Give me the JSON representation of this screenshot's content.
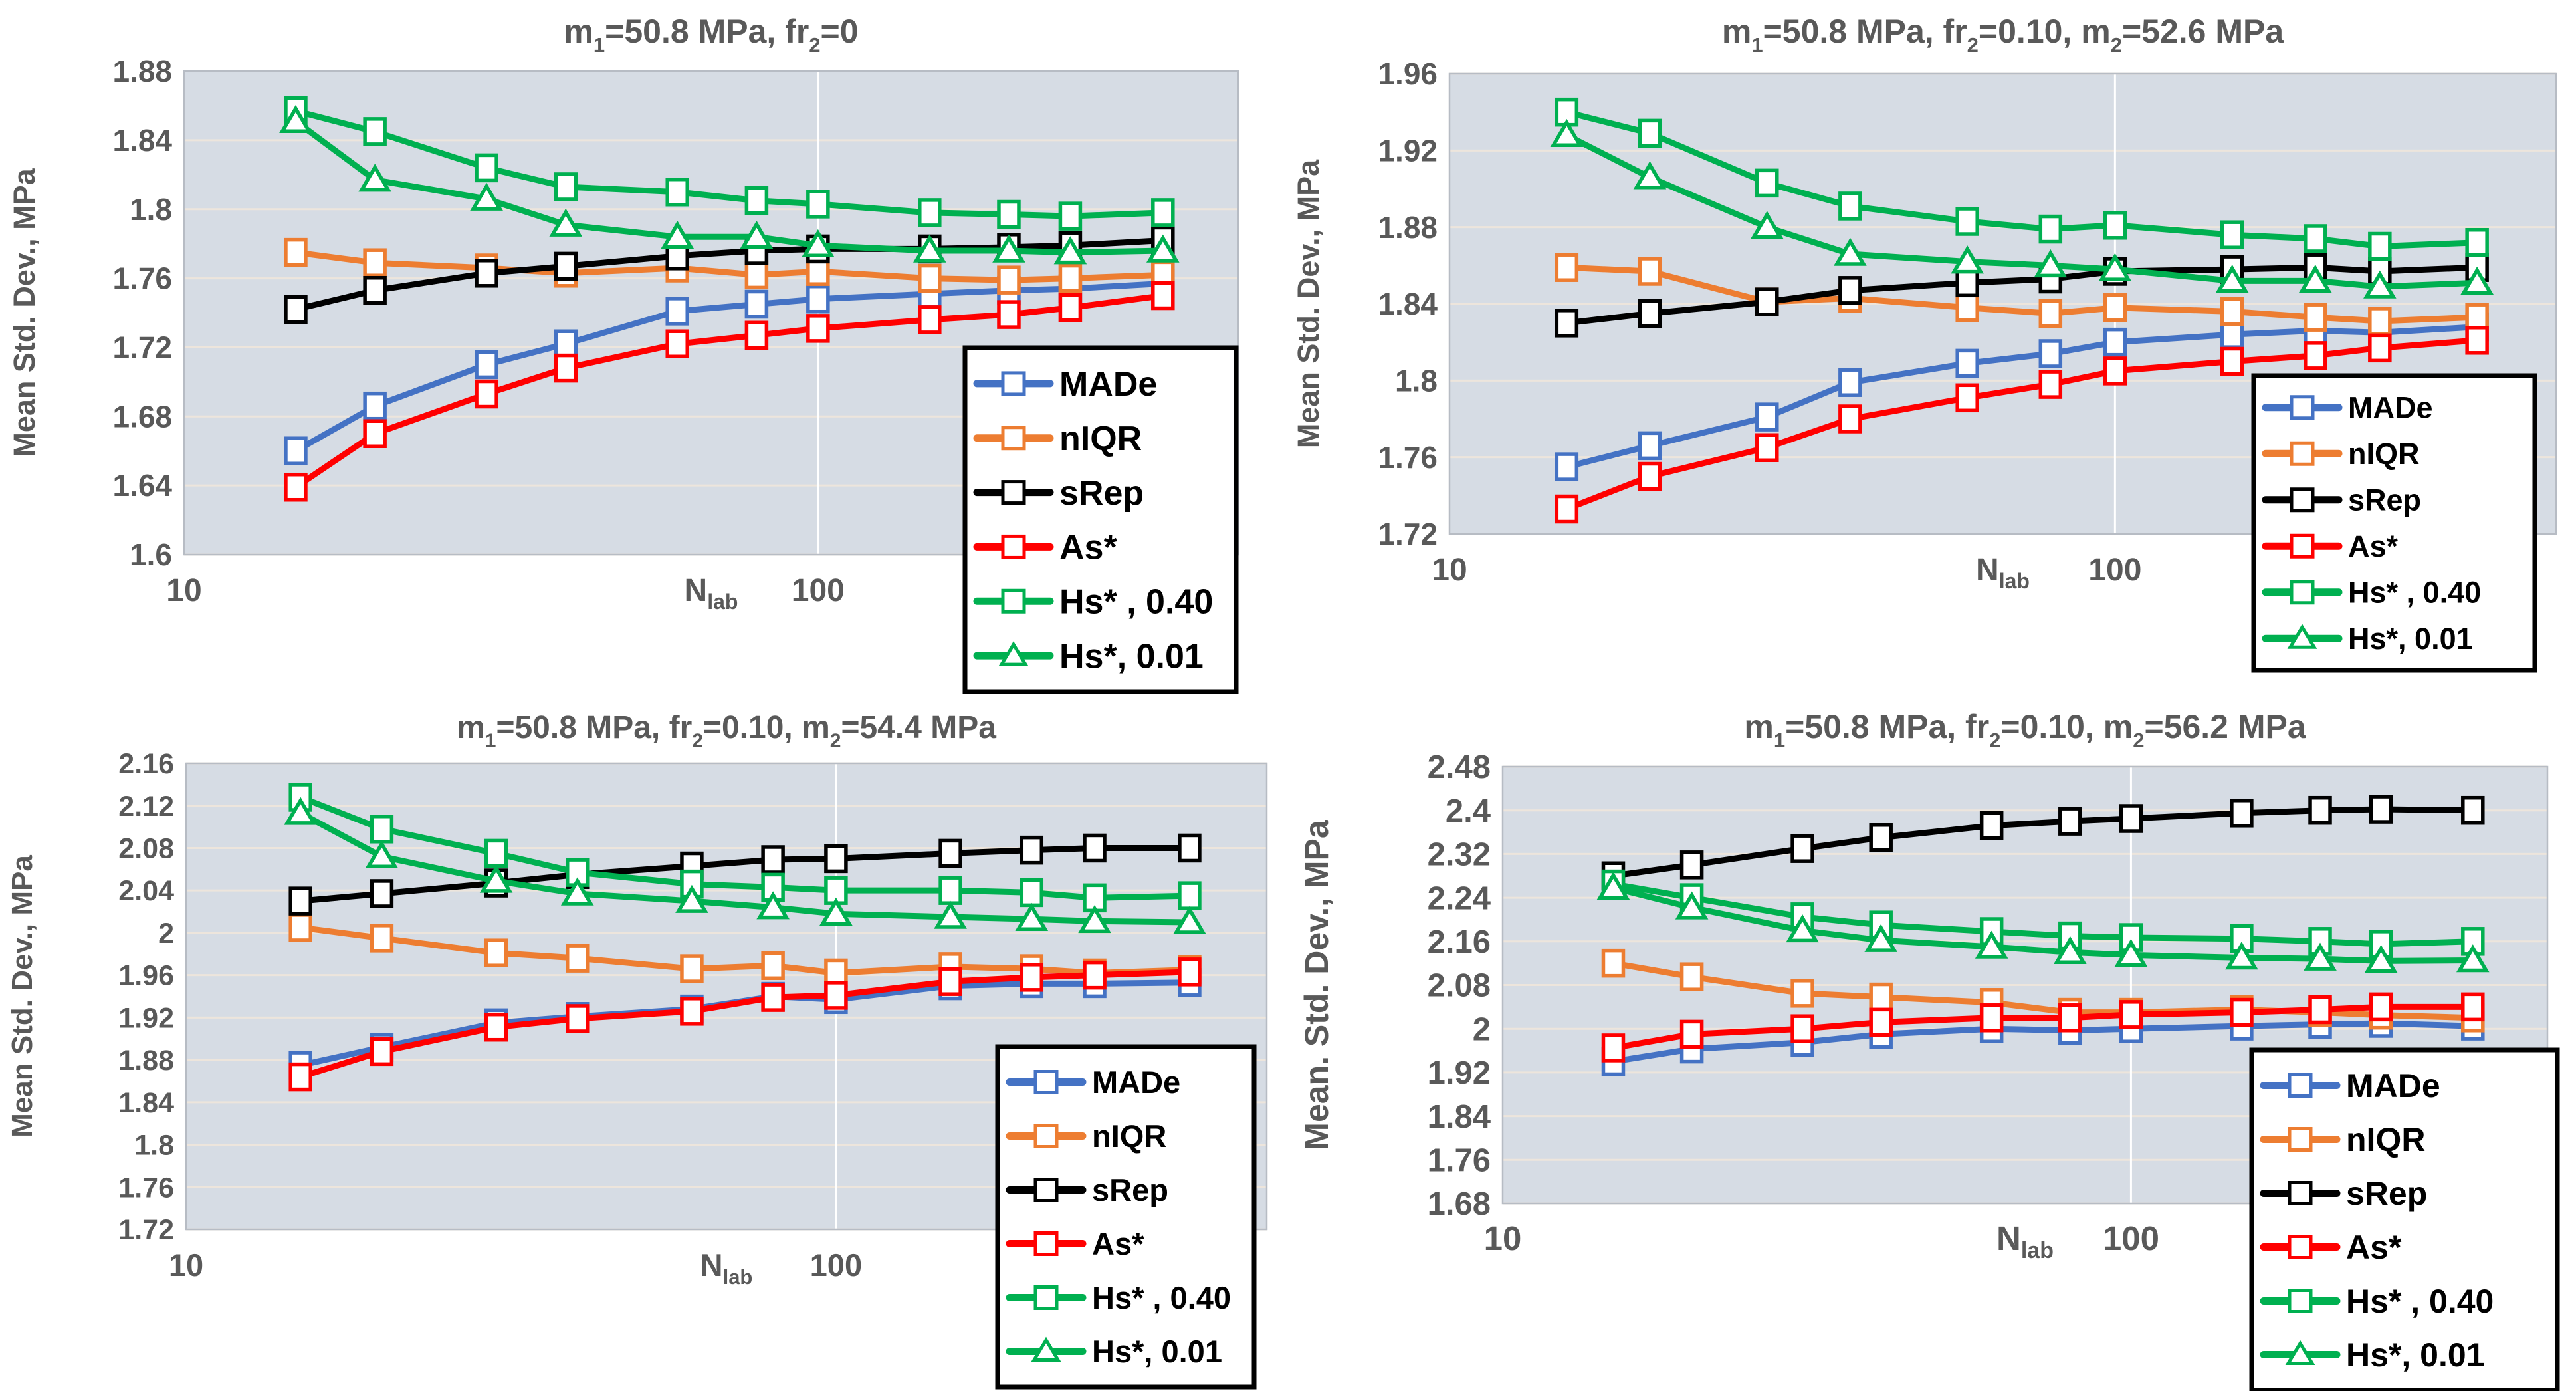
{
  "page": {
    "background": "#FFFFFF"
  },
  "colors": {
    "MADe": "#4472C4",
    "nIQR": "#ED7D31",
    "sRep": "#000000",
    "As": "#FF0000",
    "Hs": "#00B050",
    "axis_text": "#595959",
    "plot_bg": "#D6DCE4",
    "gridline": "#EDE5DC",
    "decade_gridline": "#FFFFFF",
    "plot_border": "#B7BCC4",
    "legend_border": "#000000",
    "legend_bg": "#FFFFFF",
    "legend_text": "#000000"
  },
  "legend": {
    "labels": [
      "MADe",
      "nIQR",
      "sRep",
      "As*",
      "Hs* , 0.40",
      "Hs*, 0.01"
    ]
  },
  "chart_data": [
    {
      "type": "line",
      "title": "m₁=50.8 MPa, fr₂=0",
      "title_segments": [
        {
          "t": "m"
        },
        {
          "t": "1",
          "sub": true
        },
        {
          "t": "=50.8 MPa, fr"
        },
        {
          "t": "2",
          "sub": true
        },
        {
          "t": "=0"
        }
      ],
      "xlabel": {
        "main": "N",
        "sub": "lab"
      },
      "ylabel": "Mean Std. Dev., MPa",
      "x_scale": "log",
      "xlim": [
        10,
        460
      ],
      "x_ticks": [
        {
          "v": 10,
          "label": "10"
        },
        {
          "v": 100,
          "label": "100"
        }
      ],
      "ylim": [
        1.6,
        1.88
      ],
      "y_ticks": [
        {
          "v": 1.6,
          "label": "1.6"
        },
        {
          "v": 1.64,
          "label": "1.64"
        },
        {
          "v": 1.68,
          "label": "1.68"
        },
        {
          "v": 1.72,
          "label": "1.72"
        },
        {
          "v": 1.76,
          "label": "1.76"
        },
        {
          "v": 1.8,
          "label": "1.8"
        },
        {
          "v": 1.84,
          "label": "1.84"
        },
        {
          "v": 1.88,
          "label": "1.88"
        }
      ],
      "x": [
        15,
        20,
        30,
        40,
        60,
        80,
        100,
        150,
        200,
        250,
        350
      ],
      "series": [
        {
          "name": "MADe",
          "color": "MADe",
          "marker": "square",
          "values": [
            1.66,
            1.686,
            1.71,
            1.722,
            1.741,
            1.745,
            1.748,
            1.751,
            1.753,
            1.754,
            1.757
          ]
        },
        {
          "name": "nIQR",
          "color": "nIQR",
          "marker": "square",
          "values": [
            1.775,
            1.769,
            1.766,
            1.763,
            1.766,
            1.762,
            1.764,
            1.76,
            1.759,
            1.76,
            1.762
          ]
        },
        {
          "name": "sRep",
          "color": "sRep",
          "marker": "square",
          "values": [
            1.742,
            1.753,
            1.763,
            1.767,
            1.773,
            1.776,
            1.777,
            1.777,
            1.778,
            1.779,
            1.782
          ]
        },
        {
          "name": "As*",
          "color": "As",
          "marker": "square",
          "values": [
            1.639,
            1.67,
            1.693,
            1.708,
            1.722,
            1.727,
            1.731,
            1.736,
            1.739,
            1.743,
            1.75
          ]
        },
        {
          "name": "Hs* , 0.40",
          "color": "Hs",
          "marker": "square",
          "values": [
            1.857,
            1.845,
            1.824,
            1.813,
            1.81,
            1.805,
            1.803,
            1.798,
            1.797,
            1.796,
            1.798
          ]
        },
        {
          "name": "Hs*, 0.01",
          "color": "Hs",
          "marker": "triangle",
          "values": [
            1.851,
            1.817,
            1.806,
            1.791,
            1.784,
            1.784,
            1.779,
            1.776,
            1.776,
            1.775,
            1.776
          ]
        }
      ]
    },
    {
      "type": "line",
      "title": "m₁=50.8 MPa, fr₂=0.10, m₂=52.6 MPa",
      "title_segments": [
        {
          "t": "m"
        },
        {
          "t": "1",
          "sub": true
        },
        {
          "t": "=50.8 MPa, fr"
        },
        {
          "t": "2",
          "sub": true
        },
        {
          "t": "=0.10, m"
        },
        {
          "t": "2",
          "sub": true
        },
        {
          "t": "=52.6 MPa"
        }
      ],
      "xlabel": {
        "main": "N",
        "sub": "lab"
      },
      "ylabel": "Mean Std. Dev., MPa",
      "x_scale": "log",
      "xlim": [
        10,
        460
      ],
      "x_ticks": [
        {
          "v": 10,
          "label": "10"
        },
        {
          "v": 100,
          "label": "100"
        }
      ],
      "ylim": [
        1.72,
        1.96
      ],
      "y_ticks": [
        {
          "v": 1.72,
          "label": "1.72"
        },
        {
          "v": 1.76,
          "label": "1.76"
        },
        {
          "v": 1.8,
          "label": "1.8"
        },
        {
          "v": 1.84,
          "label": "1.84"
        },
        {
          "v": 1.88,
          "label": "1.88"
        },
        {
          "v": 1.92,
          "label": "1.92"
        },
        {
          "v": 1.96,
          "label": "1.96"
        }
      ],
      "x": [
        15,
        20,
        30,
        40,
        60,
        80,
        100,
        150,
        200,
        250,
        350
      ],
      "series": [
        {
          "name": "MADe",
          "color": "MADe",
          "marker": "square",
          "values": [
            1.755,
            1.766,
            1.781,
            1.799,
            1.809,
            1.814,
            1.82,
            1.824,
            1.826,
            1.825,
            1.828
          ]
        },
        {
          "name": "nIQR",
          "color": "nIQR",
          "marker": "square",
          "values": [
            1.859,
            1.857,
            1.841,
            1.843,
            1.838,
            1.835,
            1.838,
            1.836,
            1.833,
            1.831,
            1.833
          ]
        },
        {
          "name": "sRep",
          "color": "sRep",
          "marker": "square",
          "values": [
            1.83,
            1.835,
            1.841,
            1.847,
            1.851,
            1.853,
            1.857,
            1.858,
            1.859,
            1.857,
            1.859
          ]
        },
        {
          "name": "As*",
          "color": "As",
          "marker": "square",
          "values": [
            1.733,
            1.75,
            1.765,
            1.78,
            1.791,
            1.798,
            1.805,
            1.81,
            1.813,
            1.817,
            1.821
          ]
        },
        {
          "name": "Hs* , 0.40",
          "color": "Hs",
          "marker": "square",
          "values": [
            1.94,
            1.929,
            1.903,
            1.891,
            1.883,
            1.879,
            1.881,
            1.876,
            1.874,
            1.87,
            1.872
          ]
        },
        {
          "name": "Hs*, 0.01",
          "color": "Hs",
          "marker": "triangle",
          "values": [
            1.928,
            1.906,
            1.88,
            1.866,
            1.862,
            1.86,
            1.858,
            1.852,
            1.852,
            1.849,
            1.851
          ]
        }
      ]
    },
    {
      "type": "line",
      "title": "m₁=50.8 MPa, fr₂=0.10, m₂=54.4 MPa",
      "title_segments": [
        {
          "t": "m"
        },
        {
          "t": "1",
          "sub": true
        },
        {
          "t": "=50.8 MPa, fr"
        },
        {
          "t": "2",
          "sub": true
        },
        {
          "t": "=0.10, m"
        },
        {
          "t": "2",
          "sub": true
        },
        {
          "t": "=54.4 MPa"
        }
      ],
      "xlabel": {
        "main": "N",
        "sub": "lab"
      },
      "ylabel": "Mean Std. Dev., MPa",
      "x_scale": "log",
      "xlim": [
        10,
        460
      ],
      "x_ticks": [
        {
          "v": 10,
          "label": "10"
        },
        {
          "v": 100,
          "label": "100"
        }
      ],
      "ylim": [
        1.72,
        2.16
      ],
      "y_ticks": [
        {
          "v": 1.72,
          "label": "1.72"
        },
        {
          "v": 1.76,
          "label": "1.76"
        },
        {
          "v": 1.8,
          "label": "1.8"
        },
        {
          "v": 1.84,
          "label": "1.84"
        },
        {
          "v": 1.88,
          "label": "1.88"
        },
        {
          "v": 1.92,
          "label": "1.92"
        },
        {
          "v": 1.96,
          "label": "1.96"
        },
        {
          "v": 2,
          "label": "2"
        },
        {
          "v": 2.04,
          "label": "2.04"
        },
        {
          "v": 2.08,
          "label": "2.08"
        },
        {
          "v": 2.12,
          "label": "2.12"
        },
        {
          "v": 2.16,
          "label": "2.16"
        }
      ],
      "x": [
        15,
        20,
        30,
        40,
        60,
        80,
        100,
        150,
        200,
        250,
        350
      ],
      "series": [
        {
          "name": "MADe",
          "color": "MADe",
          "marker": "square",
          "values": [
            1.875,
            1.892,
            1.915,
            1.921,
            1.928,
            1.94,
            1.937,
            1.95,
            1.952,
            1.952,
            1.953
          ]
        },
        {
          "name": "nIQR",
          "color": "nIQR",
          "marker": "square",
          "values": [
            2.005,
            1.995,
            1.981,
            1.976,
            1.966,
            1.969,
            1.962,
            1.968,
            1.966,
            1.962,
            1.965
          ]
        },
        {
          "name": "sRep",
          "color": "sRep",
          "marker": "square",
          "values": [
            2.03,
            2.037,
            2.047,
            2.055,
            2.063,
            2.069,
            2.07,
            2.075,
            2.078,
            2.08,
            2.08
          ]
        },
        {
          "name": "As*",
          "color": "As",
          "marker": "square",
          "values": [
            1.864,
            1.888,
            1.911,
            1.919,
            1.926,
            1.939,
            1.941,
            1.954,
            1.958,
            1.96,
            1.963
          ]
        },
        {
          "name": "Hs* , 0.40",
          "color": "Hs",
          "marker": "square",
          "values": [
            2.128,
            2.098,
            2.075,
            2.057,
            2.046,
            2.043,
            2.04,
            2.04,
            2.038,
            2.033,
            2.035
          ]
        },
        {
          "name": "Hs*, 0.01",
          "color": "Hs",
          "marker": "triangle",
          "values": [
            2.113,
            2.072,
            2.049,
            2.037,
            2.03,
            2.024,
            2.018,
            2.015,
            2.013,
            2.011,
            2.01
          ]
        }
      ]
    },
    {
      "type": "line",
      "title": "m₁=50.8 MPa, fr₂=0.10, m₂=56.2 MPa",
      "title_segments": [
        {
          "t": "m"
        },
        {
          "t": "1",
          "sub": true
        },
        {
          "t": "=50.8 MPa, fr"
        },
        {
          "t": "2",
          "sub": true
        },
        {
          "t": "=0.10, m"
        },
        {
          "t": "2",
          "sub": true
        },
        {
          "t": "=56.2 MPa"
        }
      ],
      "xlabel": {
        "main": "N",
        "sub": "lab"
      },
      "ylabel": "Mean. Std. Dev., MPa",
      "x_scale": "log",
      "xlim": [
        10,
        460
      ],
      "x_ticks": [
        {
          "v": 10,
          "label": "10"
        },
        {
          "v": 100,
          "label": "100"
        }
      ],
      "ylim": [
        1.68,
        2.48
      ],
      "y_ticks": [
        {
          "v": 1.68,
          "label": "1.68"
        },
        {
          "v": 1.76,
          "label": "1.76"
        },
        {
          "v": 1.84,
          "label": "1.84"
        },
        {
          "v": 1.92,
          "label": "1.92"
        },
        {
          "v": 2,
          "label": "2"
        },
        {
          "v": 2.08,
          "label": "2.08"
        },
        {
          "v": 2.16,
          "label": "2.16"
        },
        {
          "v": 2.24,
          "label": "2.24"
        },
        {
          "v": 2.32,
          "label": "2.32"
        },
        {
          "v": 2.4,
          "label": "2.4"
        },
        {
          "v": 2.48,
          "label": "2.48"
        }
      ],
      "x": [
        15,
        20,
        30,
        40,
        60,
        80,
        100,
        150,
        200,
        250,
        350
      ],
      "series": [
        {
          "name": "MADe",
          "color": "MADe",
          "marker": "square",
          "values": [
            1.94,
            1.963,
            1.975,
            1.99,
            2.0,
            1.997,
            2.0,
            2.005,
            2.008,
            2.01,
            2.005
          ]
        },
        {
          "name": "nIQR",
          "color": "nIQR",
          "marker": "square",
          "values": [
            2.12,
            2.095,
            2.065,
            2.058,
            2.048,
            2.03,
            2.03,
            2.035,
            2.03,
            2.025,
            2.02
          ]
        },
        {
          "name": "sRep",
          "color": "sRep",
          "marker": "square",
          "values": [
            2.28,
            2.3,
            2.33,
            2.35,
            2.372,
            2.38,
            2.385,
            2.395,
            2.4,
            2.402,
            2.4
          ]
        },
        {
          "name": "As*",
          "color": "As",
          "marker": "square",
          "values": [
            1.965,
            1.99,
            2.0,
            2.012,
            2.02,
            2.02,
            2.026,
            2.03,
            2.035,
            2.04,
            2.04
          ]
        },
        {
          "name": "Hs* , 0.40",
          "color": "Hs",
          "marker": "square",
          "values": [
            2.265,
            2.24,
            2.205,
            2.19,
            2.178,
            2.17,
            2.167,
            2.165,
            2.16,
            2.155,
            2.16
          ]
        },
        {
          "name": "Hs*, 0.01",
          "color": "Hs",
          "marker": "triangle",
          "values": [
            2.258,
            2.222,
            2.18,
            2.162,
            2.15,
            2.14,
            2.135,
            2.13,
            2.128,
            2.124,
            2.125
          ]
        }
      ]
    }
  ]
}
